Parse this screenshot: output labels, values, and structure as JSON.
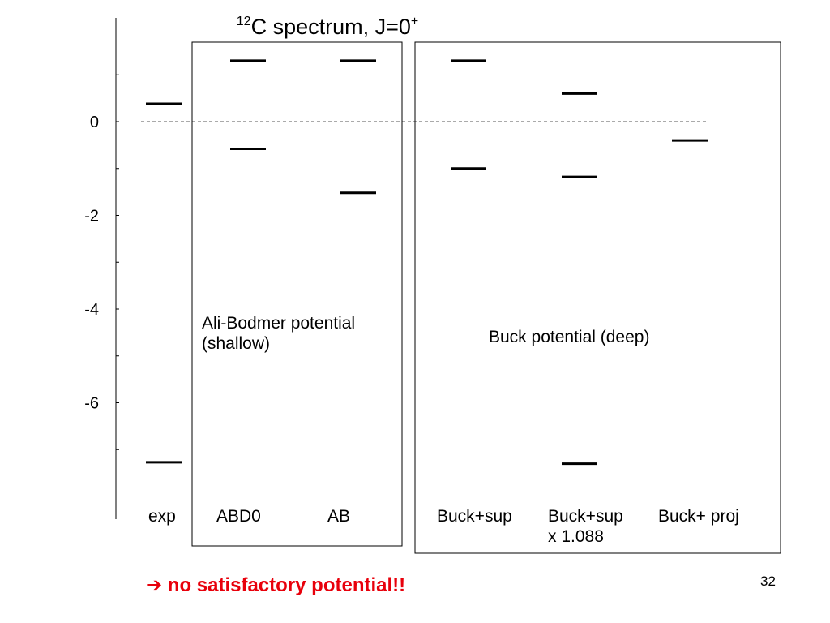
{
  "slide": {
    "title_sup": "12",
    "title_main": "C spectrum, J=0",
    "title_tail_sup": "+",
    "conclusion_arrow": "➔",
    "conclusion_text": " no satisfactory potential!!",
    "page_number": "32"
  },
  "groups": [
    {
      "label_lines": [
        "Ali-Bodmer potential",
        "(shallow)"
      ]
    },
    {
      "label_lines": [
        "Buck potential (deep)"
      ]
    }
  ],
  "colors": {
    "conclusion": "#e8000b",
    "levels": "#000000",
    "reference_line": "#555555"
  },
  "chart_data": {
    "type": "level-diagram",
    "title": "12C spectrum, J=0+",
    "ylabel": "",
    "ylim": [
      -8.4,
      2.3
    ],
    "y_ticks": [
      0,
      -2,
      -4,
      -6
    ],
    "y_minor_ticks": [
      1,
      -1,
      -3,
      -5,
      -7
    ],
    "reference_line_y": 0,
    "columns": [
      {
        "label": "exp",
        "levels": [
          0.38,
          -7.27
        ]
      },
      {
        "label": "ABD0",
        "levels": [
          1.3,
          -0.58
        ]
      },
      {
        "label": "AB",
        "levels": [
          1.3,
          -1.52
        ]
      },
      {
        "label": "Buck+sup",
        "levels": [
          1.3,
          -1.0
        ]
      },
      {
        "label": "Buck+sup",
        "label_line2": "x 1.088",
        "levels": [
          0.6,
          -1.18,
          -7.3
        ]
      },
      {
        "label": "Buck+ proj",
        "levels": [
          -0.4
        ]
      }
    ]
  }
}
